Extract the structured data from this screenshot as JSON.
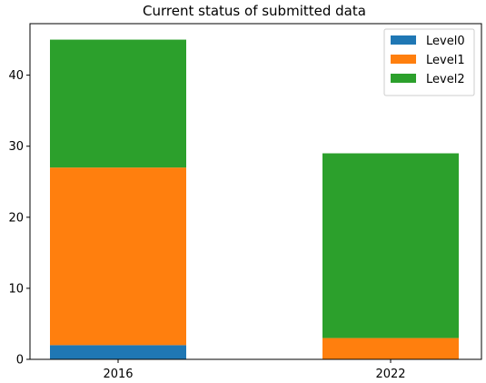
{
  "chart_data": {
    "type": "bar",
    "stacked": true,
    "title": "Current status of submitted data",
    "xlabel": "",
    "ylabel": "",
    "categories": [
      "2016",
      "2022"
    ],
    "series": [
      {
        "name": "Level0",
        "color": "#1f77b4",
        "values": [
          2,
          0
        ]
      },
      {
        "name": "Level1",
        "color": "#ff7f0e",
        "values": [
          25,
          3
        ]
      },
      {
        "name": "Level2",
        "color": "#2ca02c",
        "values": [
          18,
          26
        ]
      }
    ],
    "ylim": [
      0,
      47.25
    ],
    "yticks": [
      0,
      10,
      20,
      30,
      40
    ],
    "grid": false,
    "legend_position": "top-right"
  }
}
